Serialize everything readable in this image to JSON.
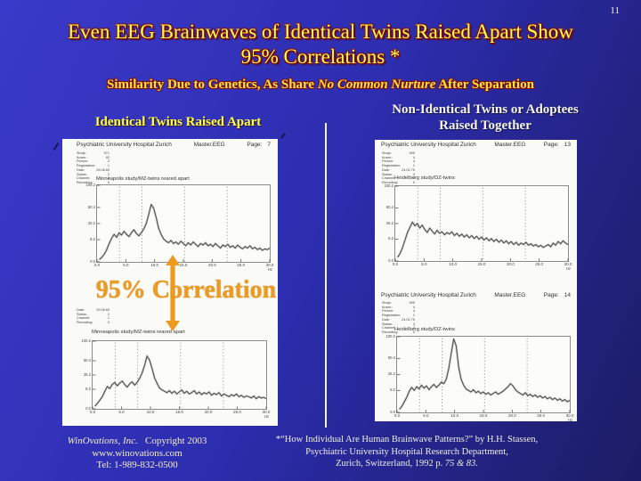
{
  "page_number": "11",
  "title": {
    "line1": "Even EEG Brainwaves of Identical Twins Raised Apart Show",
    "line2": "95% Correlations *"
  },
  "subtitle": {
    "pre": "Similarity Due to Genetics, As Share ",
    "italic": "No Common Nurture",
    "post": " After Separation"
  },
  "columns": {
    "left_header": "Identical Twins Raised Apart",
    "right_header_line1": "Non-Identical Twins or Adoptees",
    "right_header_line2": "Raised Together"
  },
  "overlay": {
    "correlation_label": "95% Correlation"
  },
  "footer_left": {
    "company": "WinOvations, Inc.",
    "copyright": "Copyright 2003",
    "website": "www.winovations.com",
    "phone": "Tel: 1-989-832-0500"
  },
  "footer_right": {
    "line1": "*“How Individual Are Human Brainwave Patterns?” by H.H. Stassen,",
    "line2": "Psychiatric University Hospital Research Department,",
    "line3_normal": "Zurich, Switzerland, 1992 p. ",
    "line3_italic": "75 & 83."
  },
  "colors": {
    "background_top": "#3a3aca",
    "background_bottom": "#1c1c64",
    "title_yellow": "#ffff55",
    "title_shadow": "#7d0e0e",
    "subtitle_yellow": "#ffe63c",
    "orange_accent": "#ec9a20",
    "scan_background": "#fafaf6",
    "divider_white": "#f2f2ee"
  },
  "chart_data": [
    {
      "type": "line",
      "title": "Minneapolis study/MZ-twins reared apart",
      "header": {
        "institution": "Psychiatric University Hospital Zurich",
        "system": "Master.EEG",
        "page_label": "Page:",
        "page": "7"
      },
      "meta": [
        [
          "Study:",
          "971"
        ],
        [
          "Anam.:",
          "92"
        ],
        [
          "Person:",
          "2"
        ],
        [
          "Registration:",
          "1"
        ],
        [
          "Date:",
          "29.08.83"
        ],
        [
          "Status:",
          "2"
        ],
        [
          "Channel:",
          "2"
        ],
        [
          "Recording:",
          "0"
        ]
      ],
      "xlabel": "Hz",
      "x_ticks": [
        "0.0",
        "5.0",
        "10.0",
        "15.0",
        "20.0",
        "25.0",
        "30.0"
      ],
      "y_ticks": [
        {
          "label": "100.2",
          "pct": 100
        },
        {
          "label": "50.4",
          "pct": 71
        },
        {
          "label": "25.2",
          "pct": 50
        },
        {
          "label": "8.2",
          "pct": 29
        },
        {
          "label": "0.0",
          "pct": 0
        }
      ],
      "band_lines_hz": [
        3.9,
        7.8,
        15.2,
        22.6
      ],
      "x_range": [
        0,
        30
      ],
      "x_start": 0.4,
      "x_end": 30,
      "values_pct": [
        3,
        6,
        10,
        16,
        24,
        31,
        36,
        32,
        38,
        35,
        40,
        36,
        33,
        38,
        42,
        37,
        34,
        38,
        43,
        50,
        62,
        75,
        70,
        58,
        44,
        36,
        30,
        27,
        25,
        28,
        24,
        26,
        23,
        27,
        24,
        21,
        25,
        22,
        26,
        23,
        20,
        24,
        22,
        25,
        21,
        23,
        20,
        24,
        21,
        18,
        22,
        20,
        23,
        19,
        21,
        18,
        22,
        19,
        17,
        20,
        18,
        21,
        17,
        19,
        16,
        18,
        15,
        17,
        16,
        18
      ]
    },
    {
      "type": "line",
      "title": "Minneapolis study/MZ-twins reared apart",
      "header": null,
      "meta": [
        [
          "Date:",
          "29.08.83"
        ],
        [
          "Status:",
          "2"
        ],
        [
          "Channel:",
          "1"
        ],
        [
          "Recording:",
          "0"
        ]
      ],
      "xlabel": "Hz",
      "x_ticks": [
        "0.0",
        "5.0",
        "10.0",
        "15.0",
        "20.0",
        "25.0",
        "30.0"
      ],
      "y_ticks": [
        {
          "label": "100.2",
          "pct": 100
        },
        {
          "label": "50.4",
          "pct": 71
        },
        {
          "label": "25.2",
          "pct": 50
        },
        {
          "label": "8.2",
          "pct": 29
        },
        {
          "label": "0.0",
          "pct": 0
        }
      ],
      "band_lines_hz": [
        3.9,
        7.8,
        15.2,
        22.6
      ],
      "x_range": [
        0,
        30
      ],
      "x_start": 0.4,
      "x_end": 30,
      "values_pct": [
        4,
        8,
        13,
        18,
        26,
        33,
        30,
        36,
        39,
        34,
        38,
        41,
        36,
        32,
        37,
        40,
        35,
        39,
        45,
        53,
        64,
        78,
        72,
        60,
        46,
        38,
        31,
        28,
        26,
        24,
        27,
        23,
        26,
        22,
        25,
        28,
        23,
        26,
        22,
        24,
        27,
        22,
        25,
        21,
        24,
        22,
        25,
        20,
        23,
        21,
        24,
        19,
        22,
        20,
        18,
        21,
        19,
        22,
        18,
        20,
        17,
        19,
        18,
        16,
        19,
        15,
        18,
        16,
        17,
        15
      ]
    },
    {
      "type": "line",
      "title": "Heidelberg study/DZ-twins",
      "header": {
        "institution": "Psychiatric University Hospital Zurich",
        "system": "Master.EEG",
        "page_label": "Page:",
        "page": "13"
      },
      "meta": [
        [
          "Study:",
          "909"
        ],
        [
          "Anam.:",
          "4"
        ],
        [
          "Person:",
          "4"
        ],
        [
          "Registration:",
          "1"
        ],
        [
          "Date:",
          "24.01.75"
        ],
        [
          "Status:",
          "3"
        ],
        [
          "Channel:",
          "2"
        ],
        [
          "Recording:",
          "0"
        ]
      ],
      "xlabel": "Hz",
      "x_ticks": [
        "0.0",
        "5.0",
        "10.0",
        "15.0",
        "20.0",
        "25.0",
        "30.0"
      ],
      "y_ticks": [
        {
          "label": "100.2",
          "pct": 100
        },
        {
          "label": "50.4",
          "pct": 71
        },
        {
          "label": "25.2",
          "pct": 50
        },
        {
          "label": "8.2",
          "pct": 29
        },
        {
          "label": "0.0",
          "pct": 0
        }
      ],
      "band_lines_hz": [
        3.9,
        7.8,
        15.2,
        22.6
      ],
      "x_range": [
        0,
        30
      ],
      "x_start": 0.4,
      "x_end": 30,
      "values_pct": [
        5,
        10,
        18,
        28,
        38,
        45,
        52,
        47,
        50,
        44,
        48,
        42,
        38,
        44,
        40,
        36,
        41,
        37,
        39,
        35,
        38,
        36,
        39,
        34,
        37,
        33,
        36,
        32,
        35,
        31,
        34,
        30,
        33,
        29,
        32,
        28,
        31,
        27,
        30,
        26,
        29,
        25,
        28,
        24,
        27,
        23,
        26,
        22,
        25,
        21,
        24,
        22,
        25,
        21,
        23,
        20,
        22,
        19,
        21,
        18,
        20,
        22,
        19,
        24,
        21,
        26,
        23,
        27,
        24,
        22
      ]
    },
    {
      "type": "line",
      "title": "Heidelberg study/DZ-twins",
      "header": {
        "institution": "Psychiatric University Hospital Zurich",
        "system": "Master.EEG",
        "page_label": "Page:",
        "page": "14"
      },
      "meta": [
        [
          "Study:",
          "909"
        ],
        [
          "Anam.:",
          "4"
        ],
        [
          "Person:",
          "4"
        ],
        [
          "Registration:",
          "1"
        ],
        [
          "Date:",
          "24.01.75"
        ],
        [
          "Status:",
          "3"
        ],
        [
          "Channel:",
          "2"
        ],
        [
          "Recording:",
          "0"
        ]
      ],
      "xlabel": "Hz",
      "x_ticks": [
        "0.0",
        "5.0",
        "10.0",
        "15.0",
        "20.0",
        "25.0",
        "30.0"
      ],
      "y_ticks": [
        {
          "label": "100.2",
          "pct": 100
        },
        {
          "label": "50.4",
          "pct": 71
        },
        {
          "label": "25.2",
          "pct": 50
        },
        {
          "label": "8.2",
          "pct": 29
        },
        {
          "label": "0.0",
          "pct": 0
        }
      ],
      "band_lines_hz": [
        3.9,
        7.8,
        15.2,
        22.6
      ],
      "x_range": [
        0,
        30
      ],
      "x_start": 0.4,
      "x_end": 30,
      "values_pct": [
        4,
        8,
        14,
        20,
        28,
        33,
        29,
        34,
        31,
        36,
        32,
        35,
        30,
        34,
        37,
        33,
        36,
        40,
        38,
        44,
        58,
        78,
        97,
        88,
        60,
        44,
        36,
        31,
        29,
        27,
        30,
        26,
        28,
        25,
        27,
        24,
        26,
        23,
        25,
        27,
        24,
        26,
        28,
        31,
        34,
        38,
        35,
        30,
        27,
        25,
        23,
        26,
        22,
        24,
        21,
        23,
        20,
        22,
        19,
        21,
        18,
        20,
        17,
        19,
        16,
        18,
        15,
        17,
        14,
        16
      ]
    }
  ]
}
